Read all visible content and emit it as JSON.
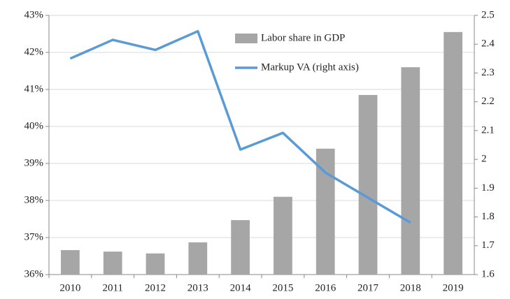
{
  "chart_data": {
    "type": "bar",
    "categories": [
      "2010",
      "2011",
      "2012",
      "2013",
      "2014",
      "2015",
      "2016",
      "2017",
      "2018",
      "2019"
    ],
    "series": [
      {
        "name": "Labor share in GDP",
        "type": "bar",
        "color": "#a6a6a6",
        "values": [
          36.66,
          36.62,
          36.57,
          36.87,
          37.47,
          38.1,
          39.4,
          40.85,
          41.6,
          42.55
        ]
      },
      {
        "name": "Markup VA (right axis)",
        "type": "line",
        "axis": "y2",
        "color": "#5b9bd5",
        "values": [
          2.35,
          2.415,
          2.38,
          2.445,
          2.034,
          2.092,
          1.954,
          1.867,
          1.78,
          null
        ]
      }
    ],
    "ylim": [
      36,
      43
    ],
    "yticks": [
      {
        "value": 36,
        "label": "36%"
      },
      {
        "value": 37,
        "label": "37%"
      },
      {
        "value": 38,
        "label": "38%"
      },
      {
        "value": 39,
        "label": "39%"
      },
      {
        "value": 40,
        "label": "40%"
      },
      {
        "value": 41,
        "label": "41%"
      },
      {
        "value": 42,
        "label": "42%"
      },
      {
        "value": 43,
        "label": "43%"
      }
    ],
    "y2lim": [
      1.6,
      2.5
    ],
    "y2ticks": [
      1.6,
      1.7,
      1.8,
      1.9,
      2,
      2.1,
      2.2,
      2.3,
      2.4,
      2.5
    ],
    "grid": true
  }
}
